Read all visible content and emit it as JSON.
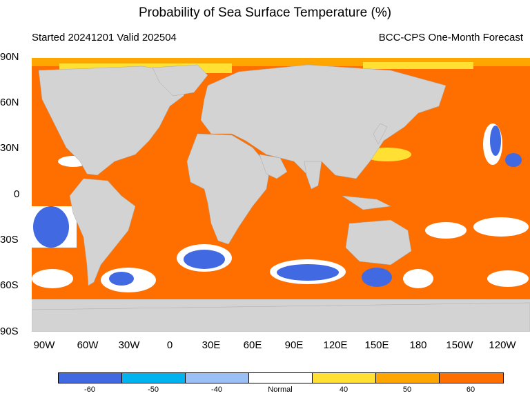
{
  "title": "Probability of Sea Surface Temperature (%)",
  "subtitle_left": "Started 20241201  Valid 202504",
  "subtitle_right": "BCC-CPS One-Month Forecast",
  "lat_labels": [
    "90N",
    "60N",
    "30N",
    "0",
    "30S",
    "60S",
    "90S"
  ],
  "lon_labels": [
    "90W",
    "60W",
    "30W",
    "0",
    "30E",
    "60E",
    "90E",
    "120E",
    "150E",
    "180",
    "150W",
    "120W"
  ],
  "colorbar": {
    "colors": [
      "#4169e1",
      "#00b2ee",
      "#9ac0f5",
      "#ffffff",
      "#ffe033",
      "#ffa500",
      "#ff6f00"
    ],
    "labels": [
      "-60",
      "-50",
      "-40",
      "Normal",
      "40",
      "50",
      "60"
    ]
  },
  "colors": {
    "land": "#d3d3d3",
    "ocean_high_warm": "#ff6f00"
  }
}
